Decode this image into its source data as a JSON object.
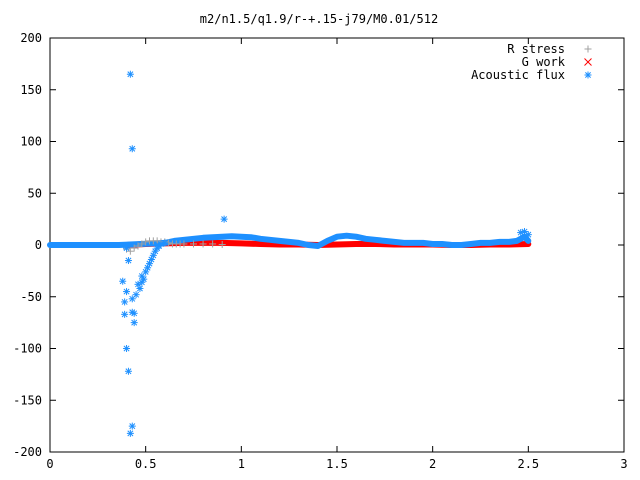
{
  "chart_data": {
    "type": "scatter",
    "title": "m2/n1.5/q1.9/r-+.15-j79/M0.01/512",
    "xlabel": "",
    "ylabel": "",
    "xlim": [
      0,
      3
    ],
    "ylim": [
      -200,
      200
    ],
    "x_ticks": [
      0,
      0.5,
      1,
      1.5,
      2,
      2.5,
      3
    ],
    "x_tick_labels": [
      "0",
      "0.5",
      "1",
      "1.5",
      "2",
      "2.5",
      "3"
    ],
    "y_ticks": [
      200,
      150,
      100,
      50,
      0,
      -50,
      -100,
      -150,
      -200
    ],
    "y_tick_labels": [
      "200",
      "150",
      "100",
      "50",
      "0",
      "-50",
      "-100",
      "-150",
      "-200"
    ],
    "grid": false,
    "legend_position": "top-right",
    "series": [
      {
        "name": "R stress",
        "marker": "plus",
        "color": "#a0a0a0",
        "points": [
          [
            0.4,
            -4
          ],
          [
            0.42,
            -6
          ],
          [
            0.44,
            -3
          ],
          [
            0.46,
            -1
          ],
          [
            0.48,
            1
          ],
          [
            0.5,
            3
          ],
          [
            0.52,
            4
          ],
          [
            0.54,
            4
          ],
          [
            0.56,
            4
          ],
          [
            0.58,
            3
          ],
          [
            0.6,
            3
          ],
          [
            0.62,
            2
          ],
          [
            0.64,
            1
          ],
          [
            0.66,
            1
          ],
          [
            0.68,
            1
          ],
          [
            0.7,
            1
          ],
          [
            0.75,
            1
          ],
          [
            0.8,
            1
          ],
          [
            0.85,
            1
          ],
          [
            0.9,
            0.5
          ]
        ]
      },
      {
        "name": "G work",
        "marker": "cross",
        "color": "#ff0000",
        "points": []
      },
      {
        "name": "Acoustic flux",
        "marker": "star",
        "color": "#1e90ff",
        "points": [
          [
            0.42,
            165
          ],
          [
            0.43,
            93
          ],
          [
            0.91,
            25
          ],
          [
            0.38,
            -35
          ],
          [
            0.39,
            -55
          ],
          [
            0.39,
            -67
          ],
          [
            0.4,
            -45
          ],
          [
            0.4,
            -100
          ],
          [
            0.4,
            -3
          ],
          [
            0.41,
            -15
          ],
          [
            0.41,
            -122
          ],
          [
            0.42,
            -182
          ],
          [
            0.43,
            -175
          ],
          [
            0.43,
            -52
          ],
          [
            0.43,
            -65
          ],
          [
            0.44,
            -66
          ],
          [
            0.44,
            -75
          ],
          [
            0.45,
            -48
          ],
          [
            0.46,
            -38
          ],
          [
            0.47,
            -42
          ],
          [
            0.48,
            -36
          ],
          [
            0.48,
            -30
          ],
          [
            0.49,
            -33
          ],
          [
            0.5,
            -26
          ],
          [
            0.51,
            -22
          ],
          [
            0.52,
            -18
          ],
          [
            0.53,
            -14
          ],
          [
            0.54,
            -10
          ],
          [
            0.55,
            -6
          ],
          [
            0.56,
            -3
          ],
          [
            0.57,
            -1
          ],
          [
            0.58,
            1
          ],
          [
            0.6,
            2
          ],
          [
            2.46,
            12
          ],
          [
            2.48,
            13
          ],
          [
            2.5,
            10
          ]
        ]
      }
    ]
  }
}
